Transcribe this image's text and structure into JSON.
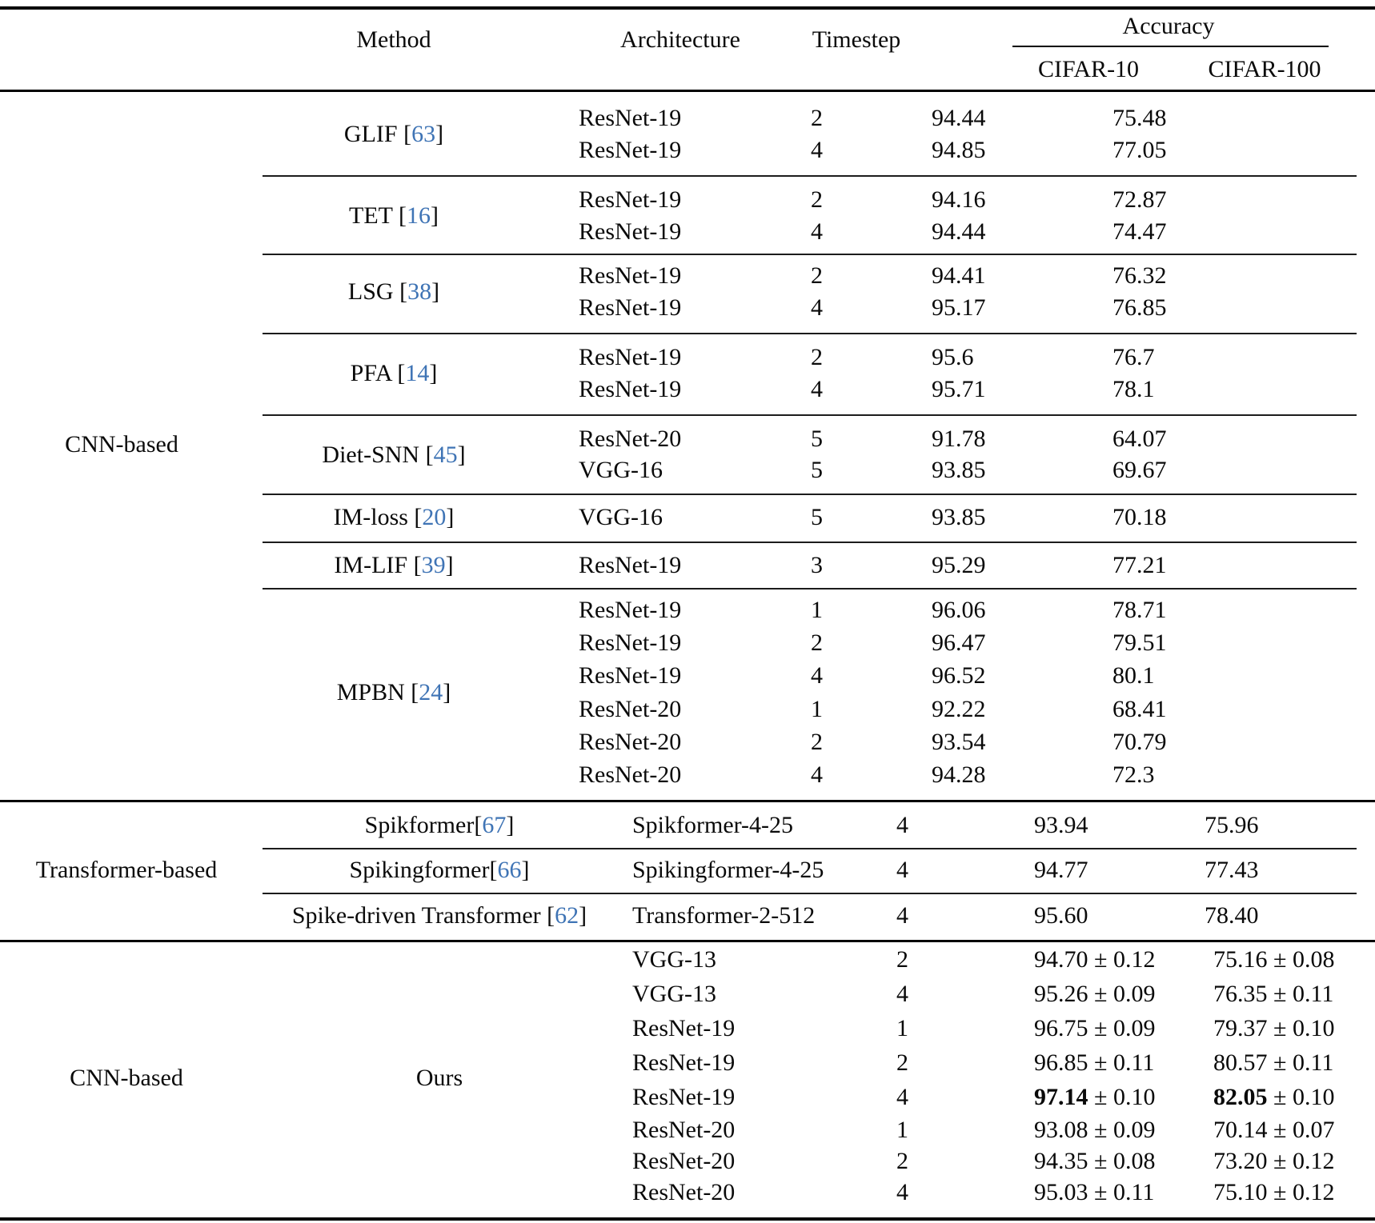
{
  "header": {
    "method": "Method",
    "architecture": "Architecture",
    "timestep": "Timestep",
    "accuracy": "Accuracy",
    "cifar10": "CIFAR-10",
    "cifar100": "CIFAR-100"
  },
  "colors": {
    "citation": "#3f74b5",
    "text": "#0a0a0a"
  },
  "sections": [
    {
      "category": "CNN-based",
      "groups": [
        {
          "method": "GLIF ",
          "ref": "63",
          "rows": [
            {
              "arch": "ResNet-19",
              "timestep": "2",
              "cifar10": "94.44",
              "cifar100": "75.48"
            },
            {
              "arch": "ResNet-19",
              "timestep": "4",
              "cifar10": "94.85",
              "cifar100": "77.05"
            }
          ]
        },
        {
          "method": "TET ",
          "ref": "16",
          "rows": [
            {
              "arch": "ResNet-19",
              "timestep": "2",
              "cifar10": "94.16",
              "cifar100": "72.87"
            },
            {
              "arch": "ResNet-19",
              "timestep": "4",
              "cifar10": "94.44",
              "cifar100": "74.47"
            }
          ]
        },
        {
          "method": "LSG ",
          "ref": "38",
          "rows": [
            {
              "arch": "ResNet-19",
              "timestep": "2",
              "cifar10": "94.41",
              "cifar100": "76.32"
            },
            {
              "arch": "ResNet-19",
              "timestep": "4",
              "cifar10": "95.17",
              "cifar100": "76.85"
            }
          ]
        },
        {
          "method": "PFA ",
          "ref": "14",
          "rows": [
            {
              "arch": "ResNet-19",
              "timestep": "2",
              "cifar10": "95.6",
              "cifar100": "76.7"
            },
            {
              "arch": "ResNet-19",
              "timestep": "4",
              "cifar10": "95.71",
              "cifar100": "78.1"
            }
          ]
        },
        {
          "method": "Diet-SNN ",
          "ref": "45",
          "rows": [
            {
              "arch": "ResNet-20",
              "timestep": "5",
              "cifar10": "91.78",
              "cifar100": "64.07"
            },
            {
              "arch": "VGG-16",
              "timestep": "5",
              "cifar10": "93.85",
              "cifar100": "69.67"
            }
          ]
        },
        {
          "method": "IM-loss ",
          "ref": "20",
          "rows": [
            {
              "arch": "VGG-16",
              "timestep": "5",
              "cifar10": "93.85",
              "cifar100": "70.18"
            }
          ]
        },
        {
          "method": "IM-LIF ",
          "ref": "39",
          "rows": [
            {
              "arch": "ResNet-19",
              "timestep": "3",
              "cifar10": "95.29",
              "cifar100": "77.21"
            }
          ]
        },
        {
          "method": "MPBN ",
          "ref": "24",
          "rows": [
            {
              "arch": "ResNet-19",
              "timestep": "1",
              "cifar10": "96.06",
              "cifar100": "78.71"
            },
            {
              "arch": "ResNet-19",
              "timestep": "2",
              "cifar10": "96.47",
              "cifar100": "79.51"
            },
            {
              "arch": "ResNet-19",
              "timestep": "4",
              "cifar10": "96.52",
              "cifar100": "80.1"
            },
            {
              "arch": "ResNet-20",
              "timestep": "1",
              "cifar10": "92.22",
              "cifar100": "68.41"
            },
            {
              "arch": "ResNet-20",
              "timestep": "2",
              "cifar10": "93.54",
              "cifar100": "70.79"
            },
            {
              "arch": "ResNet-20",
              "timestep": "4",
              "cifar10": "94.28",
              "cifar100": "72.3"
            }
          ]
        }
      ]
    },
    {
      "category": "Transformer-based",
      "groups": [
        {
          "method": "Spikformer",
          "ref": "67",
          "rows": [
            {
              "arch": "Spikformer-4-25",
              "timestep": "4",
              "cifar10": "93.94",
              "cifar100": "75.96"
            }
          ]
        },
        {
          "method": "Spikingformer",
          "ref": "66",
          "rows": [
            {
              "arch": "Spikingformer-4-25",
              "timestep": "4",
              "cifar10": "94.77",
              "cifar100": "77.43"
            }
          ]
        },
        {
          "method": "Spike-driven Transformer ",
          "ref": "62",
          "rows": [
            {
              "arch": "Transformer-2-512",
              "timestep": "4",
              "cifar10": "95.60",
              "cifar100": "78.40"
            }
          ]
        }
      ]
    },
    {
      "category": "CNN-based",
      "groups": [
        {
          "method": "Ours",
          "ref": null,
          "rows": [
            {
              "arch": "VGG-13",
              "timestep": "2",
              "cifar10": "94.70",
              "cifar10_pm": "0.12",
              "cifar100": "75.16",
              "cifar100_pm": "0.08"
            },
            {
              "arch": "VGG-13",
              "timestep": "4",
              "cifar10": "95.26",
              "cifar10_pm": "0.09",
              "cifar100": "76.35",
              "cifar100_pm": "0.11"
            },
            {
              "arch": "ResNet-19",
              "timestep": "1",
              "cifar10": "96.75",
              "cifar10_pm": "0.09",
              "cifar100": "79.37",
              "cifar100_pm": "0.10"
            },
            {
              "arch": "ResNet-19",
              "timestep": "2",
              "cifar10": "96.85",
              "cifar10_pm": "0.11",
              "cifar100": "80.57",
              "cifar100_pm": "0.11"
            },
            {
              "arch": "ResNet-19",
              "timestep": "4",
              "cifar10": "97.14",
              "cifar10_pm": "0.10",
              "cifar10_bold": true,
              "cifar100": "82.05",
              "cifar100_pm": "0.10",
              "cifar100_bold": true
            },
            {
              "arch": "ResNet-20",
              "timestep": "1",
              "cifar10": "93.08",
              "cifar10_pm": "0.09",
              "cifar100": "70.14",
              "cifar100_pm": "0.07"
            },
            {
              "arch": "ResNet-20",
              "timestep": "2",
              "cifar10": "94.35",
              "cifar10_pm": "0.08",
              "cifar100": "73.20",
              "cifar100_pm": "0.12"
            },
            {
              "arch": "ResNet-20",
              "timestep": "4",
              "cifar10": "95.03",
              "cifar10_pm": "0.11",
              "cifar100": "75.10",
              "cifar100_pm": "0.12"
            }
          ]
        }
      ]
    }
  ]
}
